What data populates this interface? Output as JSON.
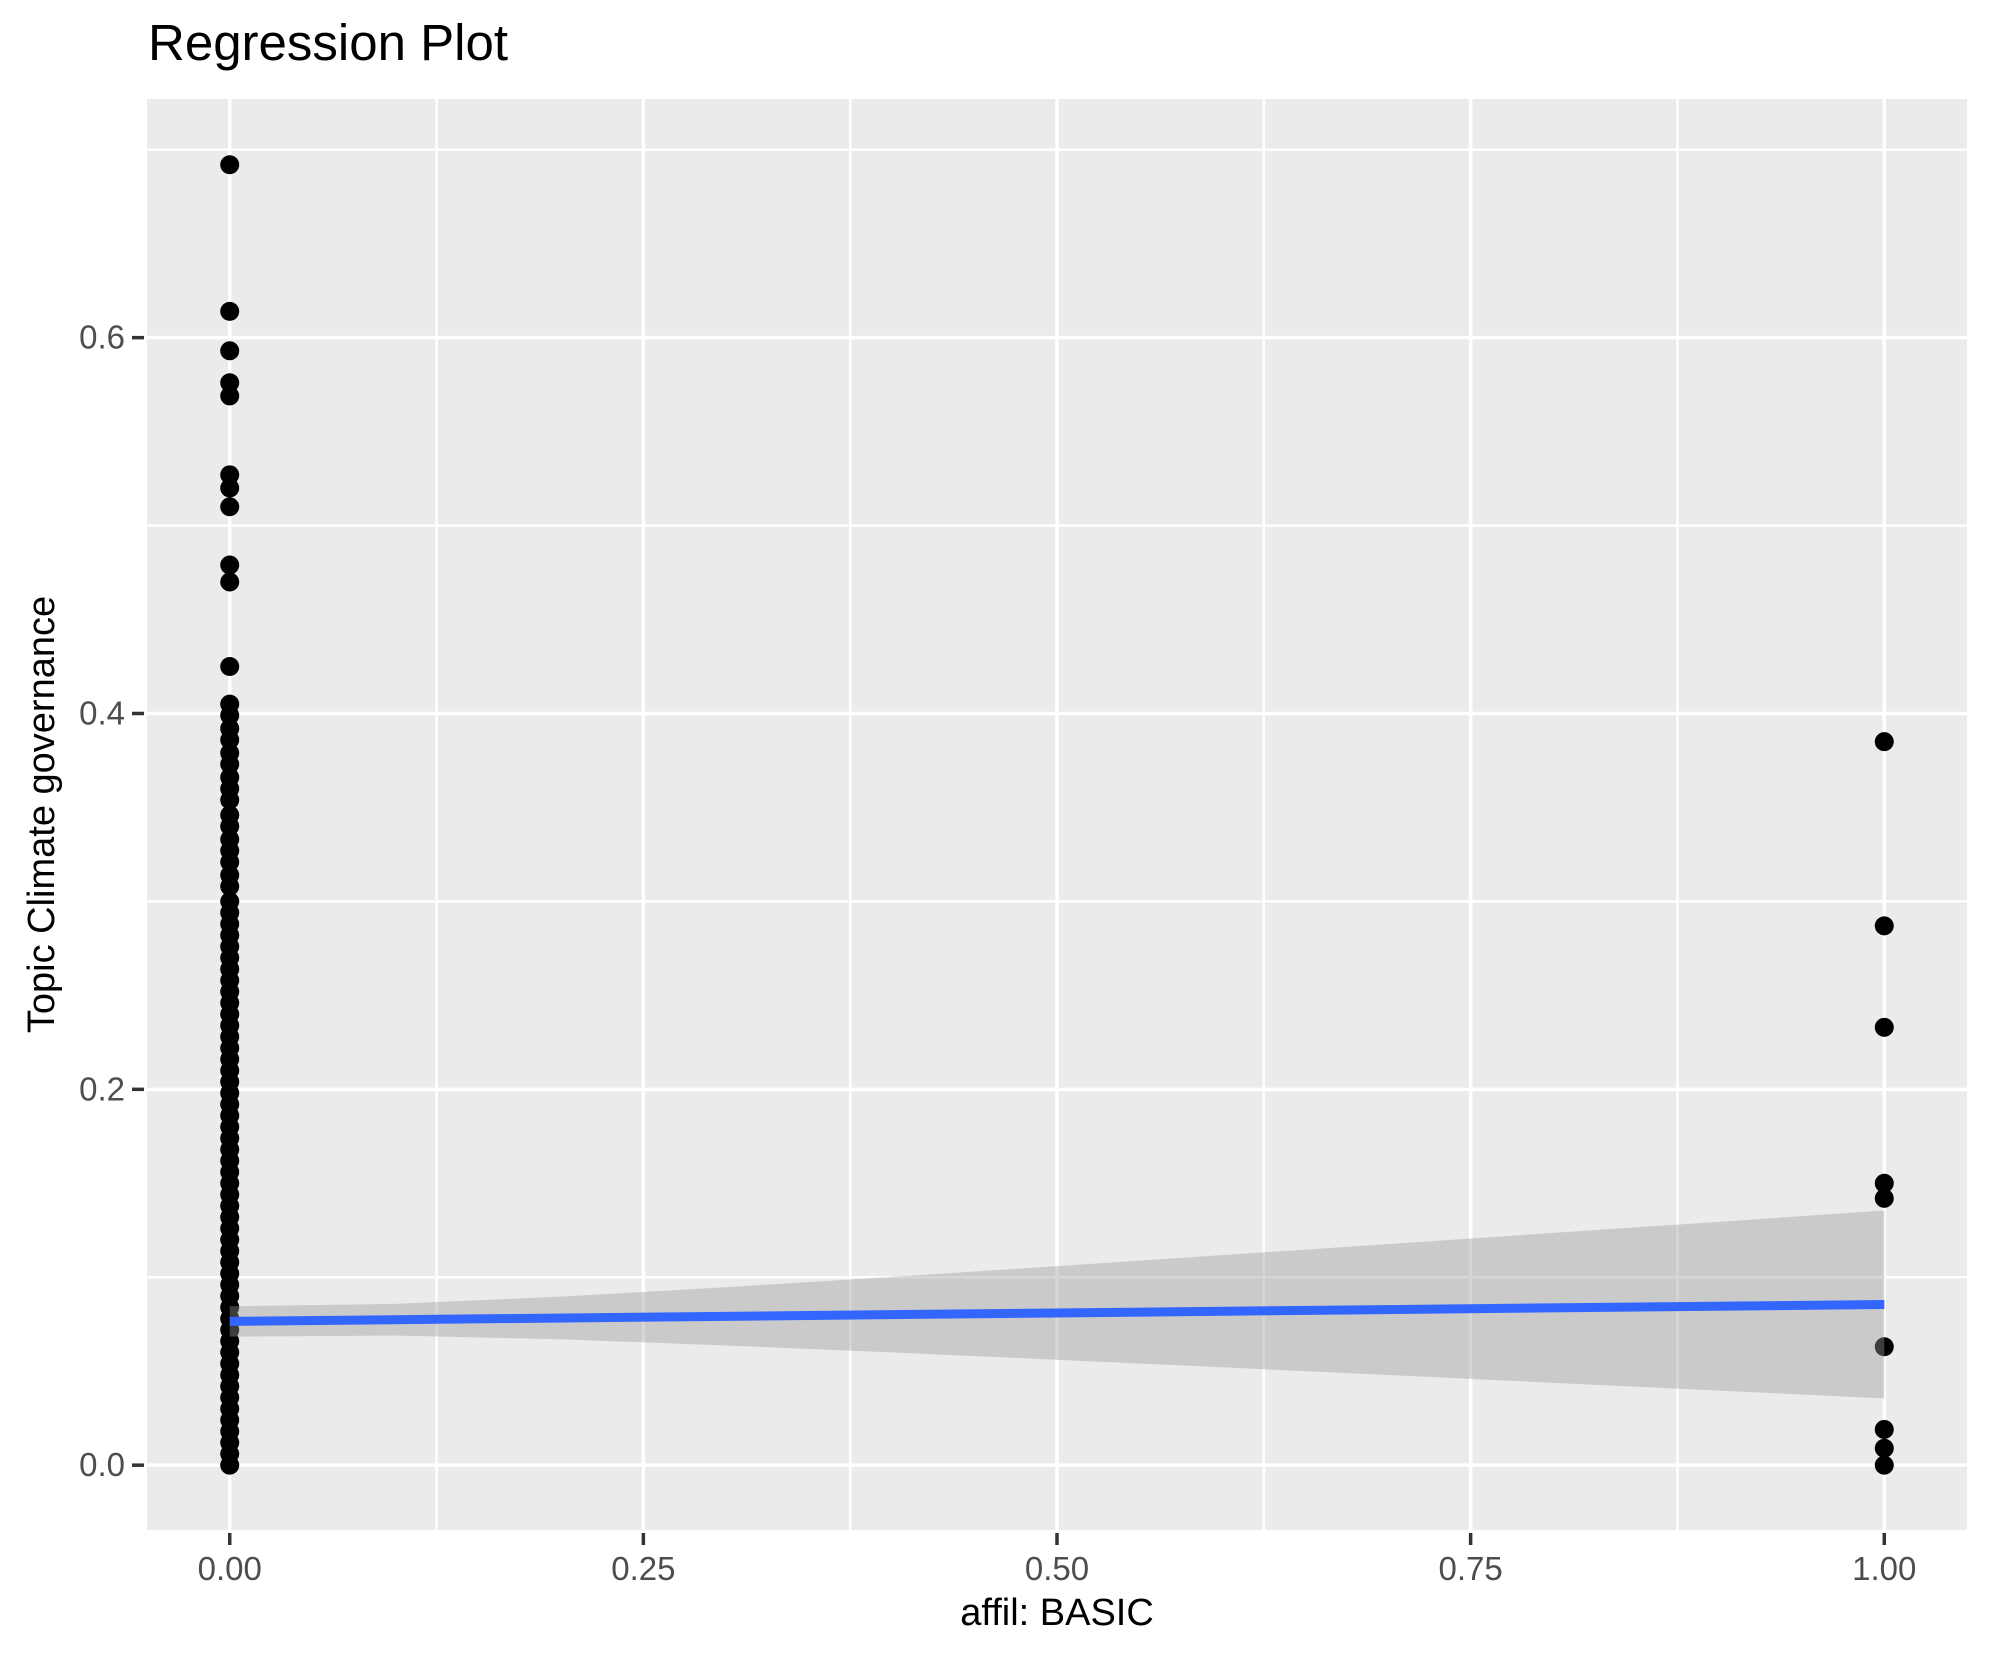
{
  "title": "Regression Plot",
  "chart_data": {
    "type": "scatter",
    "title": "Regression Plot",
    "xlabel": "affil: BASIC",
    "ylabel": "Topic Climate governance",
    "xlim": [
      -0.05,
      1.05
    ],
    "ylim": [
      -0.0345,
      0.727
    ],
    "grid": "on",
    "legend_position": "none",
    "panel_bg": "#EBEBEB",
    "grid_color": "#FFFFFF",
    "tick_color": "#333333",
    "tick_label_color": "#4D4D4D",
    "point_color": "#000000",
    "point_radius_px": 9.5,
    "x_ticks": [
      {
        "value": 0.0,
        "label": "0.00"
      },
      {
        "value": 0.25,
        "label": "0.25"
      },
      {
        "value": 0.5,
        "label": "0.50"
      },
      {
        "value": 0.75,
        "label": "0.75"
      },
      {
        "value": 1.0,
        "label": "1.00"
      }
    ],
    "y_ticks": [
      {
        "value": 0.0,
        "label": "0.0"
      },
      {
        "value": 0.2,
        "label": "0.2"
      },
      {
        "value": 0.4,
        "label": "0.4"
      },
      {
        "value": 0.6,
        "label": "0.6"
      }
    ],
    "x_minor": [
      0.125,
      0.375,
      0.625,
      0.875
    ],
    "y_minor": [
      0.1,
      0.3,
      0.5,
      0.7
    ],
    "series": [
      {
        "name": "affil = 0",
        "x": 0,
        "y": [
          0.692,
          0.614,
          0.593,
          0.576,
          0.569,
          0.527,
          0.52,
          0.51,
          0.479,
          0.47,
          0.425,
          0.405,
          0.399,
          0.392,
          0.386,
          0.379,
          0.373,
          0.366,
          0.36,
          0.354,
          0.346,
          0.34,
          0.333,
          0.327,
          0.321,
          0.314,
          0.308,
          0.3,
          0.294,
          0.288,
          0.282,
          0.276,
          0.27,
          0.264,
          0.258,
          0.252,
          0.246,
          0.24,
          0.234,
          0.228,
          0.222,
          0.216,
          0.21,
          0.204,
          0.198,
          0.192,
          0.186,
          0.18,
          0.174,
          0.168,
          0.162,
          0.156,
          0.15,
          0.144,
          0.138,
          0.132,
          0.126,
          0.12,
          0.114,
          0.108,
          0.102,
          0.096,
          0.09,
          0.084,
          0.078,
          0.072,
          0.066,
          0.06,
          0.054,
          0.048,
          0.042,
          0.036,
          0.03,
          0.024,
          0.018,
          0.012,
          0.006,
          0.0
        ]
      },
      {
        "name": "affil = 1",
        "x": 1,
        "y": [
          0.385,
          0.287,
          0.233,
          0.15,
          0.142,
          0.063,
          0.019,
          0.009,
          0.0
        ]
      }
    ],
    "regression": {
      "color": "#3366FF",
      "stroke_width": 9,
      "x": [
        0,
        1
      ],
      "y": [
        0.0765,
        0.0855
      ]
    },
    "confidence_band": {
      "color": "#999999",
      "opacity": 0.4,
      "x": [
        0.0,
        0.1,
        0.2,
        0.3,
        0.4,
        0.5,
        0.6,
        0.7,
        0.8,
        0.9,
        1.0
      ],
      "upper": [
        0.0846,
        0.0858,
        0.0897,
        0.0947,
        0.1002,
        0.1059,
        0.1118,
        0.1176,
        0.1236,
        0.1295,
        0.1355
      ],
      "lower": [
        0.0684,
        0.069,
        0.067,
        0.0637,
        0.06,
        0.0561,
        0.0521,
        0.048,
        0.0438,
        0.0397,
        0.0355
      ]
    }
  }
}
